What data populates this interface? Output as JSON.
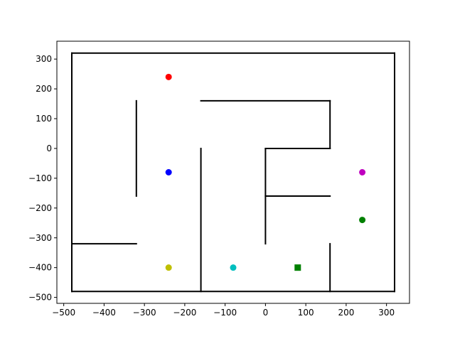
{
  "chart_data": {
    "type": "scatter",
    "title": "",
    "xlabel": "",
    "ylabel": "",
    "xlim": [
      -517,
      357
    ],
    "ylim": [
      -520,
      360
    ],
    "x_ticks": [
      -500,
      -400,
      -300,
      -200,
      -100,
      0,
      100,
      200,
      300
    ],
    "y_ticks": [
      -500,
      -400,
      -300,
      -200,
      -100,
      0,
      100,
      200,
      300
    ],
    "x_tick_labels": [
      "−500",
      "−400",
      "−300",
      "−200",
      "−100",
      "0",
      "100",
      "200",
      "300"
    ],
    "y_tick_labels": [
      "−500",
      "−400",
      "−300",
      "−200",
      "−100",
      "0",
      "100",
      "200",
      "300"
    ],
    "grid": false,
    "walls": [
      {
        "x": [
          -480,
          320
        ],
        "y": [
          320,
          320
        ]
      },
      {
        "x": [
          320,
          320
        ],
        "y": [
          320,
          -480
        ]
      },
      {
        "x": [
          320,
          -480
        ],
        "y": [
          -480,
          -480
        ]
      },
      {
        "x": [
          -480,
          -480
        ],
        "y": [
          -480,
          320
        ]
      },
      {
        "x": [
          -320,
          -320
        ],
        "y": [
          160,
          -160
        ]
      },
      {
        "x": [
          -480,
          -320
        ],
        "y": [
          -320,
          -320
        ]
      },
      {
        "x": [
          -160,
          160
        ],
        "y": [
          160,
          160
        ]
      },
      {
        "x": [
          160,
          160
        ],
        "y": [
          160,
          0
        ]
      },
      {
        "x": [
          0,
          160
        ],
        "y": [
          0,
          0
        ]
      },
      {
        "x": [
          0,
          0
        ],
        "y": [
          0,
          -320
        ]
      },
      {
        "x": [
          0,
          160
        ],
        "y": [
          -160,
          -160
        ]
      },
      {
        "x": [
          -160,
          -160
        ],
        "y": [
          0,
          -480
        ]
      },
      {
        "x": [
          160,
          160
        ],
        "y": [
          -320,
          -480
        ]
      }
    ],
    "points": [
      {
        "x": -240,
        "y": 240,
        "color": "#ff0000",
        "marker": "circle"
      },
      {
        "x": -240,
        "y": -80,
        "color": "#0000ff",
        "marker": "circle"
      },
      {
        "x": -240,
        "y": -400,
        "color": "#bfbf00",
        "marker": "circle"
      },
      {
        "x": -80,
        "y": -400,
        "color": "#00bfbf",
        "marker": "circle"
      },
      {
        "x": 80,
        "y": -400,
        "color": "#008000",
        "marker": "square"
      },
      {
        "x": 240,
        "y": -80,
        "color": "#bf00bf",
        "marker": "circle"
      },
      {
        "x": 240,
        "y": -240,
        "color": "#008000",
        "marker": "circle"
      }
    ]
  }
}
